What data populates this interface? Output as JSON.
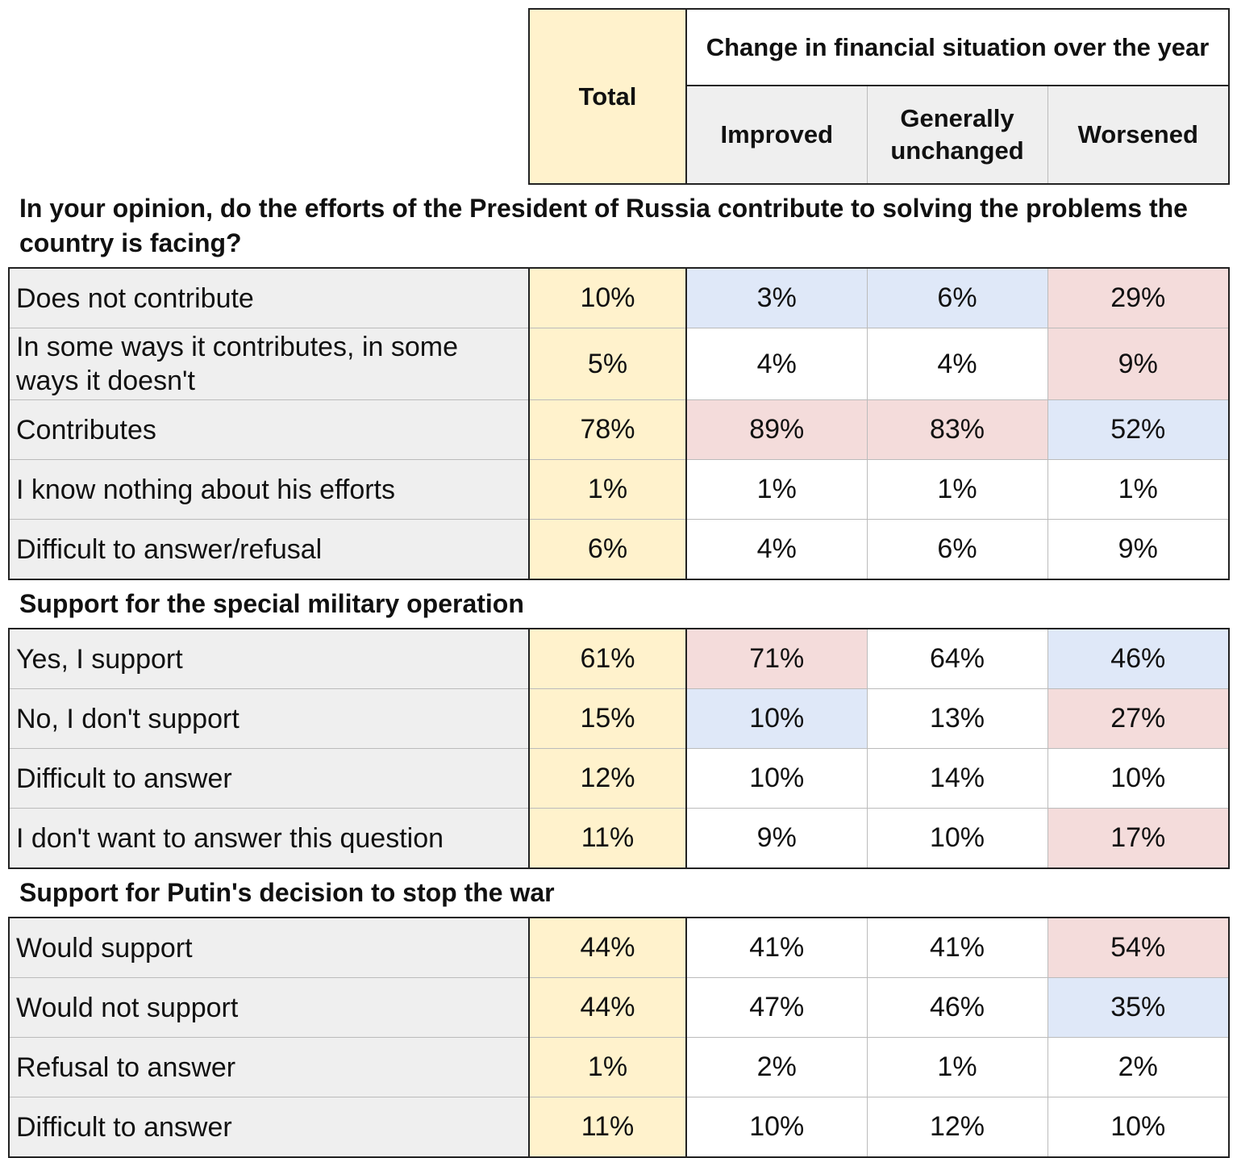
{
  "header": {
    "total": "Total",
    "group_title": "Change in financial situation over the year",
    "columns": [
      "Improved",
      "Generally unchanged",
      "Worsened"
    ]
  },
  "sections": [
    {
      "title": "In your opinion, do the efforts of the President of Russia contribute to solving the problems the country is facing?",
      "rows": [
        {
          "label": "Does not contribute",
          "values": [
            "10%",
            "3%",
            "6%",
            "29%"
          ],
          "fills": [
            "#fff2cc",
            "#dfe8f8",
            "#dfe8f8",
            "#f4dcdb"
          ]
        },
        {
          "label": "In some ways it contributes, in some ways it doesn't",
          "values": [
            "5%",
            "4%",
            "4%",
            "9%"
          ],
          "fills": [
            "#fff2cc",
            "#ffffff",
            "#ffffff",
            "#f4dcdb"
          ]
        },
        {
          "label": "Contributes",
          "values": [
            "78%",
            "89%",
            "83%",
            "52%"
          ],
          "fills": [
            "#fff2cc",
            "#f4dcdb",
            "#f4dcdb",
            "#dfe8f8"
          ]
        },
        {
          "label": "I know nothing about his efforts",
          "values": [
            "1%",
            "1%",
            "1%",
            "1%"
          ],
          "fills": [
            "#fff2cc",
            "#ffffff",
            "#ffffff",
            "#ffffff"
          ]
        },
        {
          "label": "Difficult to answer/refusal",
          "values": [
            "6%",
            "4%",
            "6%",
            "9%"
          ],
          "fills": [
            "#fff2cc",
            "#ffffff",
            "#ffffff",
            "#ffffff"
          ]
        }
      ]
    },
    {
      "title": "Support for the special military operation",
      "rows": [
        {
          "label": "Yes, I support",
          "values": [
            "61%",
            "71%",
            "64%",
            "46%"
          ],
          "fills": [
            "#fff2cc",
            "#f4dcdb",
            "#ffffff",
            "#dfe8f8"
          ]
        },
        {
          "label": "No, I don't support",
          "values": [
            "15%",
            "10%",
            "13%",
            "27%"
          ],
          "fills": [
            "#fff2cc",
            "#dfe8f8",
            "#ffffff",
            "#f4dcdb"
          ]
        },
        {
          "label": "Difficult to answer",
          "values": [
            "12%",
            "10%",
            "14%",
            "10%"
          ],
          "fills": [
            "#fff2cc",
            "#ffffff",
            "#ffffff",
            "#ffffff"
          ]
        },
        {
          "label": "I don't want to answer this question",
          "values": [
            "11%",
            "9%",
            "10%",
            "17%"
          ],
          "fills": [
            "#fff2cc",
            "#ffffff",
            "#ffffff",
            "#f4dcdb"
          ]
        }
      ]
    },
    {
      "title": "Support for Putin's decision to stop the war",
      "rows": [
        {
          "label": "Would support",
          "values": [
            "44%",
            "41%",
            "41%",
            "54%"
          ],
          "fills": [
            "#fff2cc",
            "#ffffff",
            "#ffffff",
            "#f4dcdb"
          ]
        },
        {
          "label": "Would not support",
          "values": [
            "44%",
            "47%",
            "46%",
            "35%"
          ],
          "fills": [
            "#fff2cc",
            "#ffffff",
            "#ffffff",
            "#dfe8f8"
          ]
        },
        {
          "label": "Refusal to answer",
          "values": [
            "1%",
            "2%",
            "1%",
            "2%"
          ],
          "fills": [
            "#fff2cc",
            "#ffffff",
            "#ffffff",
            "#ffffff"
          ]
        },
        {
          "label": "Difficult to answer",
          "values": [
            "11%",
            "10%",
            "12%",
            "10%"
          ],
          "fills": [
            "#fff2cc",
            "#ffffff",
            "#ffffff",
            "#ffffff"
          ]
        }
      ]
    }
  ]
}
